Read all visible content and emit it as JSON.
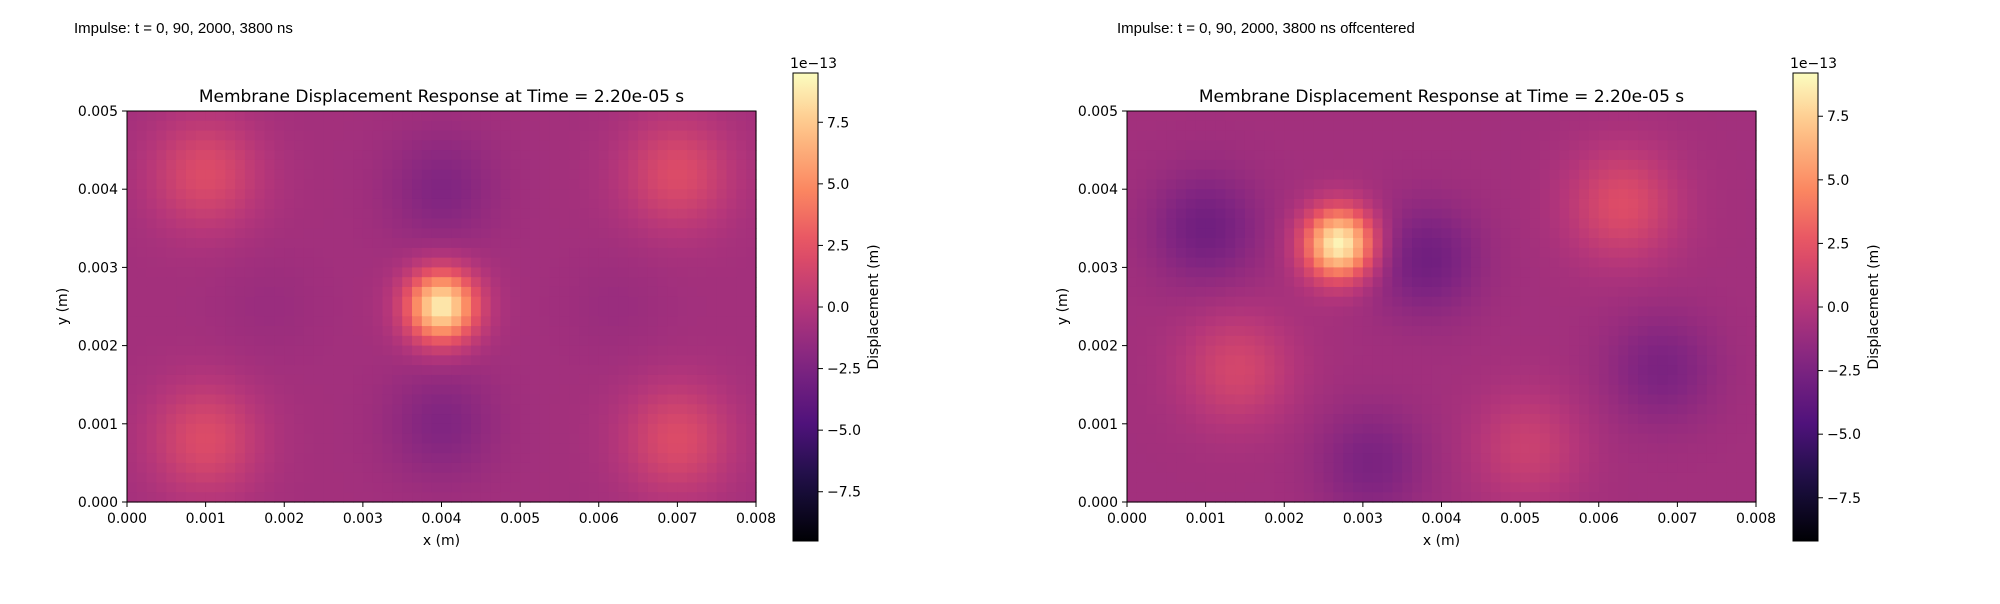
{
  "panels": [
    {
      "caption": "Impulse: t = 0, 90, 2000, 3800 ns",
      "colorbar": {
        "label": "Displacement (m)",
        "offset": "1e−13",
        "vmin": -9.5,
        "vmax": 9.5,
        "ticks": [
          "−7.5",
          "−5.0",
          "−2.5",
          "0.0",
          "2.5",
          "5.0",
          "7.5"
        ],
        "tick_values": [
          -7.5,
          -5.0,
          -2.5,
          0.0,
          2.5,
          5.0,
          7.5
        ]
      }
    },
    {
      "caption": "Impulse: t = 0, 90, 2000, 3800 ns offcentered",
      "colorbar": {
        "label": "Displacement (m)",
        "offset": "1e−13",
        "vmin": -9.2,
        "vmax": 9.2,
        "ticks": [
          "−7.5",
          "−5.0",
          "−2.5",
          "0.0",
          "2.5",
          "5.0",
          "7.5"
        ],
        "tick_values": [
          -7.5,
          -5.0,
          -2.5,
          0.0,
          2.5,
          5.0,
          7.5
        ]
      }
    }
  ],
  "chart_data": [
    {
      "type": "heatmap",
      "title": "Membrane Displacement Response at Time = 2.20e-05 s",
      "xlabel": "x (m)",
      "ylabel": "y (m)",
      "xlim": [
        0.0,
        0.008
      ],
      "ylim": [
        0.0,
        0.005
      ],
      "xticks": [
        "0.000",
        "0.001",
        "0.002",
        "0.003",
        "0.004",
        "0.005",
        "0.006",
        "0.007",
        "0.008"
      ],
      "xtick_values": [
        0.0,
        0.001,
        0.002,
        0.003,
        0.004,
        0.005,
        0.006,
        0.007,
        0.008
      ],
      "yticks": [
        "0.000",
        "0.001",
        "0.002",
        "0.003",
        "0.004",
        "0.005"
      ],
      "ytick_values": [
        0.0,
        0.001,
        0.002,
        0.003,
        0.004,
        0.005
      ],
      "colormap": "magma",
      "value_scale": "1e-13",
      "features": [
        {
          "kind": "peak",
          "x": 0.004,
          "y": 0.0025,
          "value": 9.0
        },
        {
          "kind": "crest",
          "x": 0.001,
          "y": 0.0042,
          "value": 2.0
        },
        {
          "kind": "crest",
          "x": 0.007,
          "y": 0.0042,
          "value": 2.0
        },
        {
          "kind": "crest",
          "x": 0.001,
          "y": 0.0008,
          "value": 2.0
        },
        {
          "kind": "crest",
          "x": 0.007,
          "y": 0.0008,
          "value": 2.0
        },
        {
          "kind": "trough",
          "x": 0.004,
          "y": 0.004,
          "value": -2.3
        },
        {
          "kind": "trough",
          "x": 0.004,
          "y": 0.001,
          "value": -2.3
        },
        {
          "kind": "trough",
          "x": 0.0018,
          "y": 0.0025,
          "value": -1.2
        },
        {
          "kind": "trough",
          "x": 0.0062,
          "y": 0.0025,
          "value": -1.2
        }
      ]
    },
    {
      "type": "heatmap",
      "title": "Membrane Displacement Response at Time = 2.20e-05 s",
      "xlabel": "x (m)",
      "ylabel": "y (m)",
      "xlim": [
        0.0,
        0.008
      ],
      "ylim": [
        0.0,
        0.005
      ],
      "xticks": [
        "0.000",
        "0.001",
        "0.002",
        "0.003",
        "0.004",
        "0.005",
        "0.006",
        "0.007",
        "0.008"
      ],
      "xtick_values": [
        0.0,
        0.001,
        0.002,
        0.003,
        0.004,
        0.005,
        0.006,
        0.007,
        0.008
      ],
      "yticks": [
        "0.000",
        "0.001",
        "0.002",
        "0.003",
        "0.004",
        "0.005"
      ],
      "ytick_values": [
        0.0,
        0.001,
        0.002,
        0.003,
        0.004,
        0.005
      ],
      "colormap": "magma",
      "value_scale": "1e-13",
      "features": [
        {
          "kind": "peak",
          "x": 0.0027,
          "y": 0.0033,
          "value": 9.0
        },
        {
          "kind": "crest",
          "x": 0.0063,
          "y": 0.0038,
          "value": 2.0
        },
        {
          "kind": "crest",
          "x": 0.0014,
          "y": 0.0017,
          "value": 1.5
        },
        {
          "kind": "crest",
          "x": 0.0051,
          "y": 0.0007,
          "value": 1.0
        },
        {
          "kind": "trough",
          "x": 0.001,
          "y": 0.0035,
          "value": -3.0
        },
        {
          "kind": "trough",
          "x": 0.0038,
          "y": 0.0031,
          "value": -3.0
        },
        {
          "kind": "trough",
          "x": 0.0068,
          "y": 0.0017,
          "value": -2.5
        },
        {
          "kind": "trough",
          "x": 0.0031,
          "y": 0.0005,
          "value": -2.5
        }
      ]
    }
  ]
}
